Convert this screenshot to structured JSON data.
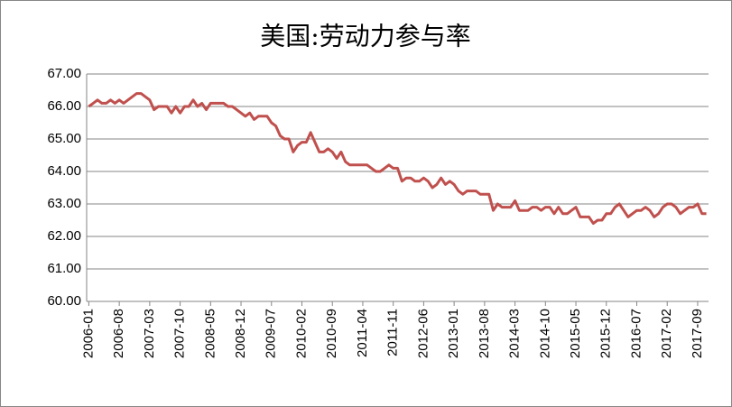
{
  "chart_data": {
    "type": "line",
    "title": "美国:劳动力参与率",
    "categories": [
      "2006-01",
      null,
      null,
      null,
      null,
      null,
      null,
      "2006-08",
      null,
      null,
      null,
      null,
      null,
      null,
      "2007-03",
      null,
      null,
      null,
      null,
      null,
      null,
      "2007-10",
      null,
      null,
      null,
      null,
      null,
      null,
      "2008-05",
      null,
      null,
      null,
      null,
      null,
      null,
      "2008-12",
      null,
      null,
      null,
      null,
      null,
      null,
      "2009-07",
      null,
      null,
      null,
      null,
      null,
      null,
      "2010-02",
      null,
      null,
      null,
      null,
      null,
      null,
      "2010-09",
      null,
      null,
      null,
      null,
      null,
      null,
      "2011-04",
      null,
      null,
      null,
      null,
      null,
      null,
      "2011-11",
      null,
      null,
      null,
      null,
      null,
      null,
      "2012-06",
      null,
      null,
      null,
      null,
      null,
      null,
      "2013-01",
      null,
      null,
      null,
      null,
      null,
      null,
      "2013-08",
      null,
      null,
      null,
      null,
      null,
      null,
      "2014-03",
      null,
      null,
      null,
      null,
      null,
      null,
      "2014-10",
      null,
      null,
      null,
      null,
      null,
      null,
      "2015-05",
      null,
      null,
      null,
      null,
      null,
      null,
      "2015-12",
      null,
      null,
      null,
      null,
      null,
      null,
      "2016-07",
      null,
      null,
      null,
      null,
      null,
      null,
      "2017-02",
      null,
      null,
      null,
      null,
      null,
      null,
      "2017-09",
      null,
      null
    ],
    "values": [
      66.0,
      66.1,
      66.2,
      66.1,
      66.1,
      66.2,
      66.1,
      66.2,
      66.1,
      66.2,
      66.3,
      66.4,
      66.4,
      66.3,
      66.2,
      65.9,
      66.0,
      66.0,
      66.0,
      65.8,
      66.0,
      65.8,
      66.0,
      66.0,
      66.2,
      66.0,
      66.1,
      65.9,
      66.1,
      66.1,
      66.1,
      66.1,
      66.0,
      66.0,
      65.9,
      65.8,
      65.7,
      65.8,
      65.6,
      65.7,
      65.7,
      65.7,
      65.5,
      65.4,
      65.1,
      65.0,
      65.0,
      64.6,
      64.8,
      64.9,
      64.9,
      65.2,
      64.9,
      64.6,
      64.6,
      64.7,
      64.6,
      64.4,
      64.6,
      64.3,
      64.2,
      64.2,
      64.2,
      64.2,
      64.2,
      64.1,
      64.0,
      64.0,
      64.1,
      64.2,
      64.1,
      64.1,
      63.7,
      63.8,
      63.8,
      63.7,
      63.7,
      63.8,
      63.7,
      63.5,
      63.6,
      63.8,
      63.6,
      63.7,
      63.6,
      63.4,
      63.3,
      63.4,
      63.4,
      63.4,
      63.3,
      63.3,
      63.3,
      62.8,
      63.0,
      62.9,
      62.9,
      62.9,
      63.1,
      62.8,
      62.8,
      62.8,
      62.9,
      62.9,
      62.8,
      62.9,
      62.9,
      62.7,
      62.9,
      62.7,
      62.7,
      62.8,
      62.9,
      62.6,
      62.6,
      62.6,
      62.4,
      62.5,
      62.5,
      62.7,
      62.7,
      62.9,
      63.0,
      62.8,
      62.6,
      62.7,
      62.8,
      62.8,
      62.9,
      62.8,
      62.6,
      62.7,
      62.9,
      63.0,
      63.0,
      62.9,
      62.7,
      62.8,
      62.9,
      62.9,
      63.0,
      62.7,
      62.7
    ],
    "color": "#c0504d",
    "ylim": [
      60,
      67
    ],
    "yticks": [
      {
        "value": 60,
        "label": "60.00"
      },
      {
        "value": 61,
        "label": "61.00"
      },
      {
        "value": 62,
        "label": "62.00"
      },
      {
        "value": 63,
        "label": "63.00"
      },
      {
        "value": 64,
        "label": "64.00"
      },
      {
        "value": 65,
        "label": "65.00"
      },
      {
        "value": 66,
        "label": "66.00"
      },
      {
        "value": 67,
        "label": "67.00"
      }
    ],
    "grid": true
  }
}
